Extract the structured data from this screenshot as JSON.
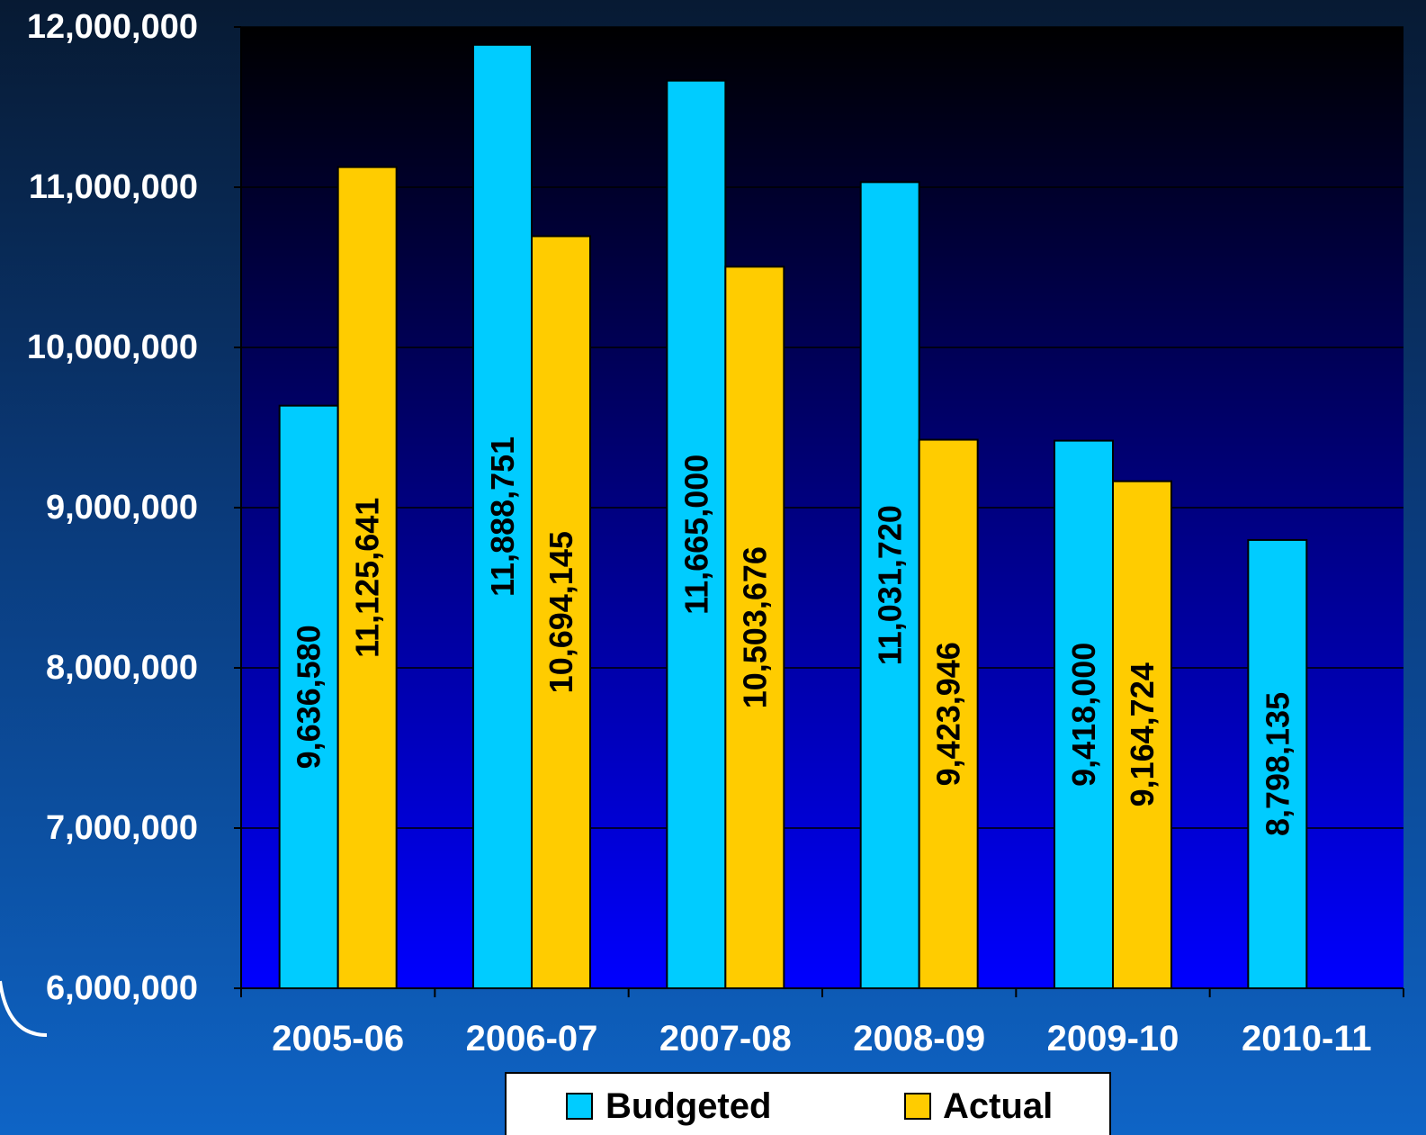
{
  "chart_data": {
    "type": "bar",
    "title": "",
    "xlabel": "",
    "ylabel": "",
    "categories": [
      "2005-06",
      "2006-07",
      "2007-08",
      "2008-09",
      "2009-10",
      "2010-11"
    ],
    "series": [
      {
        "name": "Budgeted",
        "color": "#00ccff",
        "values": [
          9636580,
          11888751,
          11665000,
          11031720,
          9418000,
          8798135
        ],
        "labels": [
          "9,636,580",
          "11,888,751",
          "11,665,000",
          "11,031,720",
          "9,418,000",
          "8,798,135"
        ]
      },
      {
        "name": "Actual",
        "color": "#ffcc00",
        "values": [
          11125641,
          10694145,
          10503676,
          9423946,
          9164724,
          null
        ],
        "labels": [
          "11,125,641",
          "10,694,145",
          "10,503,676",
          "9,423,946",
          "9,164,724",
          null
        ]
      }
    ],
    "ylim": [
      6000000,
      12000000
    ],
    "yticks": [
      6000000,
      7000000,
      8000000,
      9000000,
      10000000,
      11000000,
      12000000
    ],
    "ytick_labels": [
      "6,000,000",
      "7,000,000",
      "8,000,000",
      "9,000,000",
      "10,000,000",
      "11,000,000",
      "12,000,000"
    ],
    "grid": true,
    "legend_position": "bottom",
    "plot_background": [
      "#000000",
      "#0000ff"
    ]
  }
}
